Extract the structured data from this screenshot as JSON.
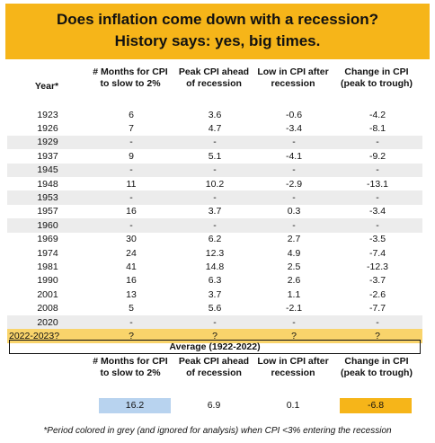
{
  "title": {
    "line1": "Does inflation come down with a recession?",
    "line2": "History says: yes, big times."
  },
  "headers": {
    "year": "Year*",
    "months": "# Months for CPI to slow to 2%",
    "peak": "Peak CPI ahead of recession",
    "low": "Low in CPI after recession",
    "change": "Change in CPI (peak to trough)"
  },
  "rows": [
    {
      "year": "1923",
      "months": "6",
      "peak": "3.6",
      "low": "-0.6",
      "change": "-4.2",
      "style": "white"
    },
    {
      "year": "1926",
      "months": "7",
      "peak": "4.7",
      "low": "-3.4",
      "change": "-8.1",
      "style": "white"
    },
    {
      "year": "1929",
      "months": "-",
      "peak": "-",
      "low": "-",
      "change": "-",
      "style": "grey"
    },
    {
      "year": "1937",
      "months": "9",
      "peak": "5.1",
      "low": "-4.1",
      "change": "-9.2",
      "style": "white"
    },
    {
      "year": "1945",
      "months": "-",
      "peak": "-",
      "low": "-",
      "change": "-",
      "style": "grey"
    },
    {
      "year": "1948",
      "months": "11",
      "peak": "10.2",
      "low": "-2.9",
      "change": "-13.1",
      "style": "white"
    },
    {
      "year": "1953",
      "months": "-",
      "peak": "-",
      "low": "-",
      "change": "-",
      "style": "grey"
    },
    {
      "year": "1957",
      "months": "16",
      "peak": "3.7",
      "low": "0.3",
      "change": "-3.4",
      "style": "white"
    },
    {
      "year": "1960",
      "months": "-",
      "peak": "-",
      "low": "-",
      "change": "-",
      "style": "grey"
    },
    {
      "year": "1969",
      "months": "30",
      "peak": "6.2",
      "low": "2.7",
      "change": "-3.5",
      "style": "white"
    },
    {
      "year": "1974",
      "months": "24",
      "peak": "12.3",
      "low": "4.9",
      "change": "-7.4",
      "style": "white"
    },
    {
      "year": "1981",
      "months": "41",
      "peak": "14.8",
      "low": "2.5",
      "change": "-12.3",
      "style": "white"
    },
    {
      "year": "1990",
      "months": "16",
      "peak": "6.3",
      "low": "2.6",
      "change": "-3.7",
      "style": "white"
    },
    {
      "year": "2001",
      "months": "13",
      "peak": "3.7",
      "low": "1.1",
      "change": "-2.6",
      "style": "white"
    },
    {
      "year": "2008",
      "months": "5",
      "peak": "5.6",
      "low": "-2.1",
      "change": "-7.7",
      "style": "white"
    },
    {
      "year": "2020",
      "months": "-",
      "peak": "-",
      "low": "-",
      "change": "-",
      "style": "grey"
    },
    {
      "year": "2022-2023?",
      "months": "?",
      "peak": "?",
      "low": "?",
      "change": "?",
      "style": "yellow"
    }
  ],
  "average": {
    "label": "Average (1922-2022)",
    "months": "16.2",
    "peak": "6.9",
    "low": "0.1",
    "change": "-6.8"
  },
  "footnote": "*Period colored in grey (and ignored for analysis) when CPI <3% entering the recession",
  "colors": {
    "banner": "#f6b519",
    "grey_row": "#ececec",
    "yellow_row": "#f9d46b",
    "blue_cell": "#b8d3ef",
    "orange_cell": "#f6b519"
  }
}
